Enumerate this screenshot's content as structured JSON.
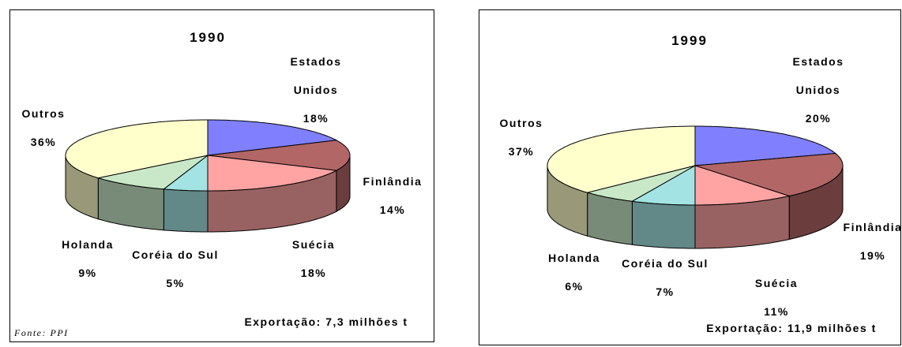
{
  "chart_data": [
    {
      "type": "pie3d",
      "title": "1990",
      "categories": [
        "Estados Unidos",
        "Finlândia",
        "Suécia",
        "Coréia do Sul",
        "Holanda",
        "Outros"
      ],
      "values": [
        18,
        14,
        18,
        5,
        9,
        36
      ],
      "value_labels": [
        "18%",
        "14%",
        "18%",
        "5%",
        "9%",
        "36%"
      ],
      "colors": [
        "#8080ff",
        "#b36666",
        "#ffa3a3",
        "#a3e3e3",
        "#c8e8c8",
        "#ffffcc"
      ],
      "annotation": "Exportação: 7,3 milhões t",
      "source": "Fonte: PPI"
    },
    {
      "type": "pie3d",
      "title": "1999",
      "categories": [
        "Estados Unidos",
        "Finlândia",
        "Suécia",
        "Coréia do Sul",
        "Holanda",
        "Outros"
      ],
      "values": [
        20,
        19,
        11,
        7,
        6,
        37
      ],
      "value_labels": [
        "20%",
        "19%",
        "11%",
        "7%",
        "6%",
        "37%"
      ],
      "colors": [
        "#8080ff",
        "#b36666",
        "#ffa3a3",
        "#a3e3e3",
        "#c8e8c8",
        "#ffffcc"
      ],
      "annotation": "Exportação: 11,9 milhões t"
    }
  ]
}
